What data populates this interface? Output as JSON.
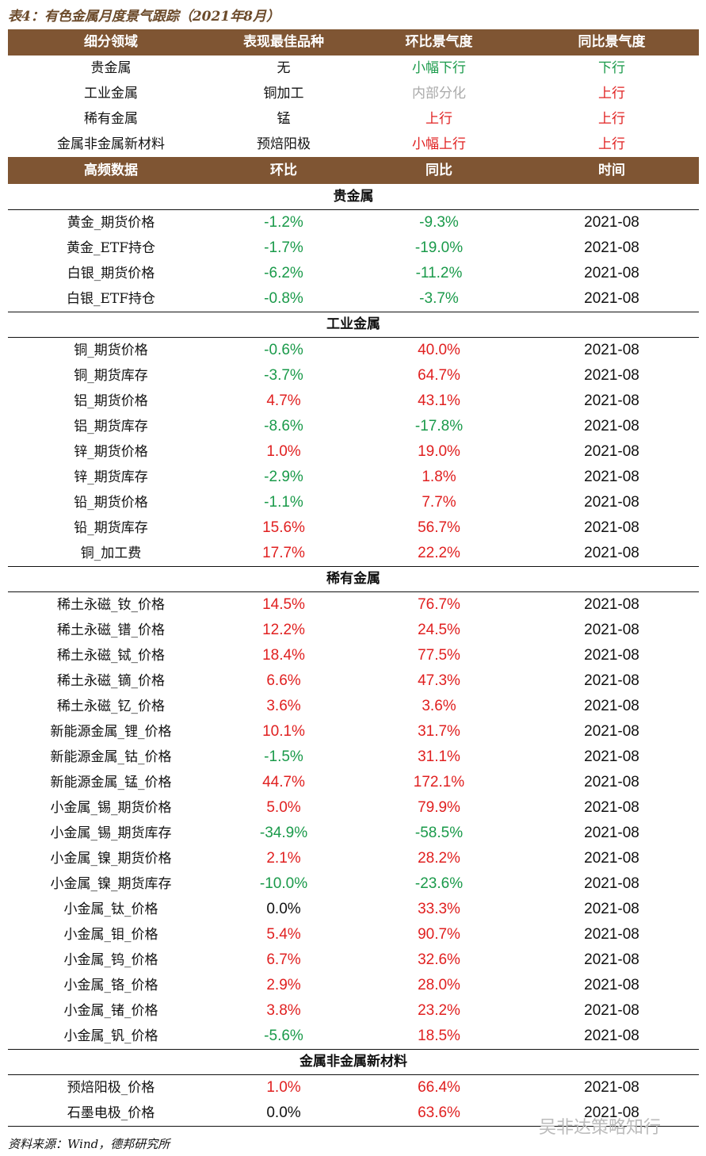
{
  "title": "表4：有色金属月度景气跟踪（2021年8月）",
  "summary": {
    "header": [
      "细分领域",
      "表现最佳品种",
      "环比景气度",
      "同比景气度"
    ],
    "rows": [
      {
        "cells": [
          "贵金属",
          "无",
          "小幅下行",
          "下行"
        ],
        "colors": [
          "#111111",
          "#111111",
          "#1a9a4a",
          "#1a9a4a"
        ]
      },
      {
        "cells": [
          "工业金属",
          "铜加工",
          "内部分化",
          "上行"
        ],
        "colors": [
          "#111111",
          "#111111",
          "#aaaaaa",
          "#e02020"
        ]
      },
      {
        "cells": [
          "稀有金属",
          "锰",
          "上行",
          "上行"
        ],
        "colors": [
          "#111111",
          "#111111",
          "#e02020",
          "#e02020"
        ]
      },
      {
        "cells": [
          "金属非金属新材料",
          "预焙阳极",
          "小幅上行",
          "上行"
        ],
        "colors": [
          "#111111",
          "#111111",
          "#e02020",
          "#e02020"
        ]
      }
    ]
  },
  "data": {
    "header": [
      "高频数据",
      "环比",
      "同比",
      "时间"
    ],
    "colors": {
      "up": "#e02020",
      "down": "#1a9a4a",
      "flat": "#111111"
    },
    "sections": [
      {
        "title": "贵金属",
        "rows": [
          [
            "黄金_期货价格",
            "-1.2%",
            "-9.3%",
            "2021-08"
          ],
          [
            "黄金_ETF持仓",
            "-1.7%",
            "-19.0%",
            "2021-08"
          ],
          [
            "白银_期货价格",
            "-6.2%",
            "-11.2%",
            "2021-08"
          ],
          [
            "白银_ETF持仓",
            "-0.8%",
            "-3.7%",
            "2021-08"
          ]
        ]
      },
      {
        "title": "工业金属",
        "rows": [
          [
            "铜_期货价格",
            "-0.6%",
            "40.0%",
            "2021-08"
          ],
          [
            "铜_期货库存",
            "-3.7%",
            "64.7%",
            "2021-08"
          ],
          [
            "铝_期货价格",
            "4.7%",
            "43.1%",
            "2021-08"
          ],
          [
            "铝_期货库存",
            "-8.6%",
            "-17.8%",
            "2021-08"
          ],
          [
            "锌_期货价格",
            "1.0%",
            "19.0%",
            "2021-08"
          ],
          [
            "锌_期货库存",
            "-2.9%",
            "1.8%",
            "2021-08"
          ],
          [
            "铅_期货价格",
            "-1.1%",
            "7.7%",
            "2021-08"
          ],
          [
            "铅_期货库存",
            "15.6%",
            "56.7%",
            "2021-08"
          ],
          [
            "铜_加工费",
            "17.7%",
            "22.2%",
            "2021-08"
          ]
        ]
      },
      {
        "title": "稀有金属",
        "rows": [
          [
            "稀土永磁_钕_价格",
            "14.5%",
            "76.7%",
            "2021-08"
          ],
          [
            "稀土永磁_镨_价格",
            "12.2%",
            "24.5%",
            "2021-08"
          ],
          [
            "稀土永磁_铽_价格",
            "18.4%",
            "77.5%",
            "2021-08"
          ],
          [
            "稀土永磁_镝_价格",
            "6.6%",
            "47.3%",
            "2021-08"
          ],
          [
            "稀土永磁_钇_价格",
            "3.6%",
            "3.6%",
            "2021-08"
          ],
          [
            "新能源金属_锂_价格",
            "10.1%",
            "31.7%",
            "2021-08"
          ],
          [
            "新能源金属_钴_价格",
            "-1.5%",
            "31.1%",
            "2021-08"
          ],
          [
            "新能源金属_锰_价格",
            "44.7%",
            "172.1%",
            "2021-08"
          ],
          [
            "小金属_锡_期货价格",
            "5.0%",
            "79.9%",
            "2021-08"
          ],
          [
            "小金属_锡_期货库存",
            "-34.9%",
            "-58.5%",
            "2021-08"
          ],
          [
            "小金属_镍_期货价格",
            "2.1%",
            "28.2%",
            "2021-08"
          ],
          [
            "小金属_镍_期货库存",
            "-10.0%",
            "-23.6%",
            "2021-08"
          ],
          [
            "小金属_钛_价格",
            "0.0%",
            "33.3%",
            "2021-08"
          ],
          [
            "小金属_钼_价格",
            "5.4%",
            "90.7%",
            "2021-08"
          ],
          [
            "小金属_钨_价格",
            "6.7%",
            "32.6%",
            "2021-08"
          ],
          [
            "小金属_铬_价格",
            "2.9%",
            "28.0%",
            "2021-08"
          ],
          [
            "小金属_锗_价格",
            "3.8%",
            "23.2%",
            "2021-08"
          ],
          [
            "小金属_钒_价格",
            "-5.6%",
            "18.5%",
            "2021-08"
          ]
        ]
      },
      {
        "title": "金属非金属新材料",
        "rows": [
          [
            "预焙阳极_价格",
            "1.0%",
            "66.4%",
            "2021-08"
          ],
          [
            "石墨电极_价格",
            "0.0%",
            "63.6%",
            "2021-08"
          ]
        ]
      }
    ]
  },
  "source": "资料来源：Wind，德邦研究所",
  "watermark": "吴非达策略知行"
}
